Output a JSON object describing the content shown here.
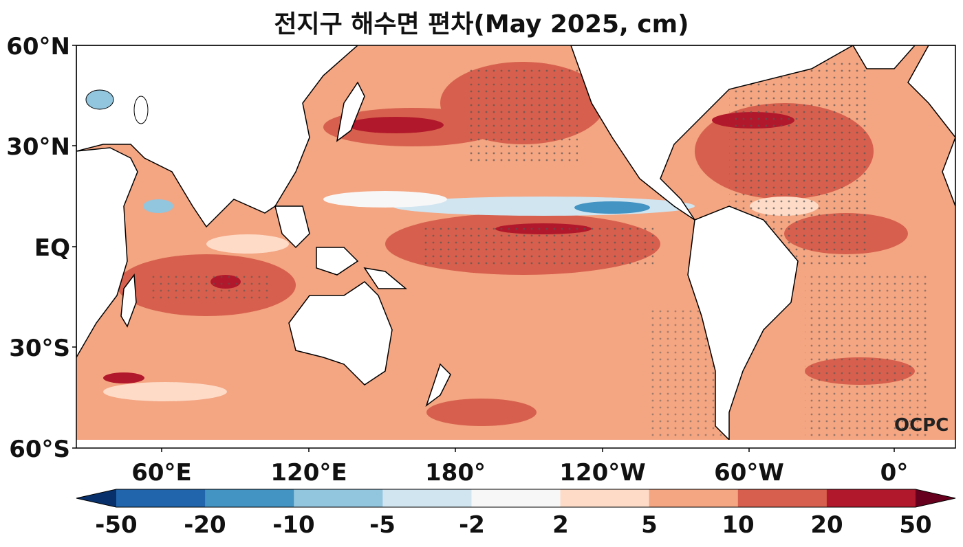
{
  "title": "전지구 해수면 편차(May 2025, cm)",
  "brand": "OCPC",
  "lat_ticks": [
    "60°N",
    "30°N",
    "EQ",
    "30°S",
    "60°S"
  ],
  "lon_ticks": [
    "60°E",
    "120°E",
    "180°",
    "120°W",
    "60°W",
    "0°"
  ],
  "colorbar": {
    "labels": [
      "-50",
      "-20",
      "-10",
      "-5",
      "-2",
      "2",
      "5",
      "10",
      "20",
      "50"
    ],
    "colors": [
      "#08306b",
      "#2166ac",
      "#4393c3",
      "#92c5de",
      "#d1e5f0",
      "#f7f7f7",
      "#fddbc7",
      "#f4a582",
      "#d6604d",
      "#b2182b",
      "#67001f"
    ]
  }
}
